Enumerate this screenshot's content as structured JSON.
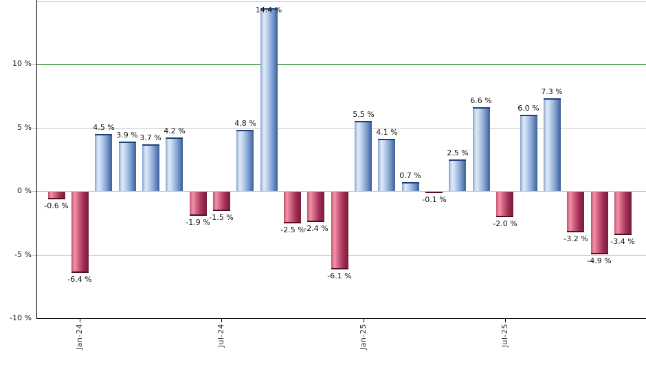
{
  "chart_data": {
    "type": "bar",
    "title": "",
    "xlabel": "",
    "ylabel": "",
    "values": [
      -0.6,
      -6.4,
      4.5,
      3.9,
      3.7,
      4.2,
      -1.9,
      -1.5,
      4.8,
      14.4,
      -2.5,
      -2.4,
      -6.1,
      5.5,
      4.1,
      0.7,
      -0.1,
      2.5,
      6.6,
      -2.0,
      6.0,
      7.3,
      -3.2,
      -4.9,
      -3.4
    ],
    "value_label_suffix": " %",
    "x_tick_labels": [
      {
        "label": "Jan-24",
        "bar_index": 1
      },
      {
        "label": "Jul-24",
        "bar_index": 7
      },
      {
        "label": "Jan-25",
        "bar_index": 13
      },
      {
        "label": "Jul-25",
        "bar_index": 19
      }
    ],
    "y_ticks": [
      {
        "label": "10 %",
        "value": 10
      },
      {
        "label": "5 %",
        "value": 5
      },
      {
        "label": "0 %",
        "value": 0
      },
      {
        "label": "-5 %",
        "value": -5
      },
      {
        "label": "-10 %",
        "value": -10
      }
    ],
    "ylim": [
      -10.1,
      14.9
    ],
    "grid": "horizontal",
    "legend": "none",
    "reference_line": {
      "value": 10,
      "color": "#117a11"
    },
    "colors": {
      "positive_highlight": "#dfe9f7",
      "positive_dark": "#40629a",
      "positive_cap": "#1e3f75",
      "negative_highlight": "#ef93a9",
      "negative_dark": "#7a1e3c",
      "negative_cap": "#4f1026",
      "gridline": "#c6c6c6",
      "top_border": "#c9c9c9",
      "axis": "#000000",
      "value_label_text": "#111111",
      "tick_label_text": "#333333"
    }
  }
}
